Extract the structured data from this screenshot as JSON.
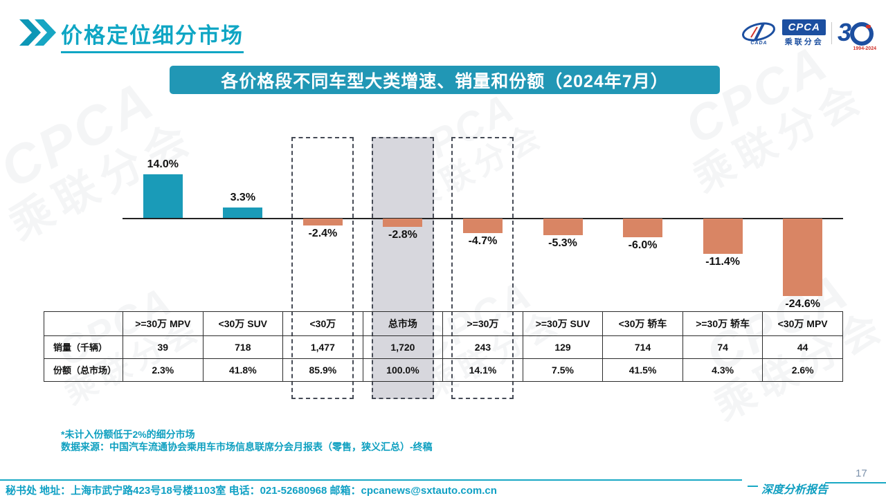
{
  "page": {
    "title": "价格定位细分市场",
    "page_number": "17",
    "report_tag": "深度分析报告"
  },
  "header_logo": {
    "cpca": "CPCA",
    "cpca_sub": "乘联分会",
    "cada": "CADA",
    "anniversary_years": "1994-2024"
  },
  "banner": {
    "title": "各价格段不同车型大类增速、销量和份额（2024年7月）"
  },
  "chart_data": {
    "type": "bar",
    "title": "各价格段不同车型大类增速、销量和份额（2024年7月）",
    "unit": "%",
    "categories": [
      ">=30万 MPV",
      "<30万 SUV",
      "<30万",
      "总市场",
      ">=30万",
      ">=30万 SUV",
      "<30万 轿车",
      ">=30万 轿车",
      "<30万 MPV"
    ],
    "values": [
      14.0,
      3.3,
      -2.4,
      -2.8,
      -4.7,
      -5.3,
      -6.0,
      -11.4,
      -24.6
    ],
    "labels": [
      "14.0%",
      "3.3%",
      "-2.4%",
      "-2.8%",
      "-4.7%",
      "-5.3%",
      "-6.0%",
      "-11.4%",
      "-24.6%"
    ],
    "positive_color": "#1A9BB8",
    "negative_color": "#D98564",
    "highlight_boxes": [
      {
        "category": "<30万",
        "column_index": 2,
        "style": "dashed"
      },
      {
        "category": "总市场",
        "column_index": 3,
        "style": "dashed-gray"
      },
      {
        "category": ">=30万",
        "column_index": 4,
        "style": "dashed"
      }
    ],
    "ylim": [
      -26,
      16
    ],
    "grid": false,
    "legend": "none"
  },
  "table": {
    "columns": [
      ">=30万 MPV",
      "<30万 SUV",
      "<30万",
      "总市场",
      ">=30万",
      ">=30万 SUV",
      "<30万 轿车",
      ">=30万 轿车",
      "<30万 MPV"
    ],
    "rows": [
      {
        "label": "销量（千辆）",
        "values": [
          "39",
          "718",
          "1,477",
          "1,720",
          "243",
          "129",
          "714",
          "74",
          "44"
        ]
      },
      {
        "label": "份额（总市场）",
        "values": [
          "2.3%",
          "41.8%",
          "85.9%",
          "100.0%",
          "14.1%",
          "7.5%",
          "41.5%",
          "4.3%",
          "2.6%"
        ]
      }
    ]
  },
  "notes": {
    "line1": "*未计入份额低于2%的细分市场",
    "line2": "数据来源：中国汽车流通协会乘用车市场信息联席分会月报表（零售，狭义汇总）-终稿"
  },
  "footer": {
    "contact": "秘书处  地址：上海市武宁路423号18号楼1103室  电话：021-52680968   邮箱：cpcanews@sxtauto.com.cn"
  },
  "watermark": {
    "line1": "CPCA",
    "line2": "乘联分会"
  },
  "colors": {
    "accent_teal": "#0FA6C4",
    "banner_teal": "#2197B5",
    "bar_positive": "#1A9BB8",
    "bar_negative": "#D98564",
    "highlight_gray": "#D7D7DD",
    "logo_blue": "#1C4FA0",
    "logo_red": "#D0342C"
  }
}
